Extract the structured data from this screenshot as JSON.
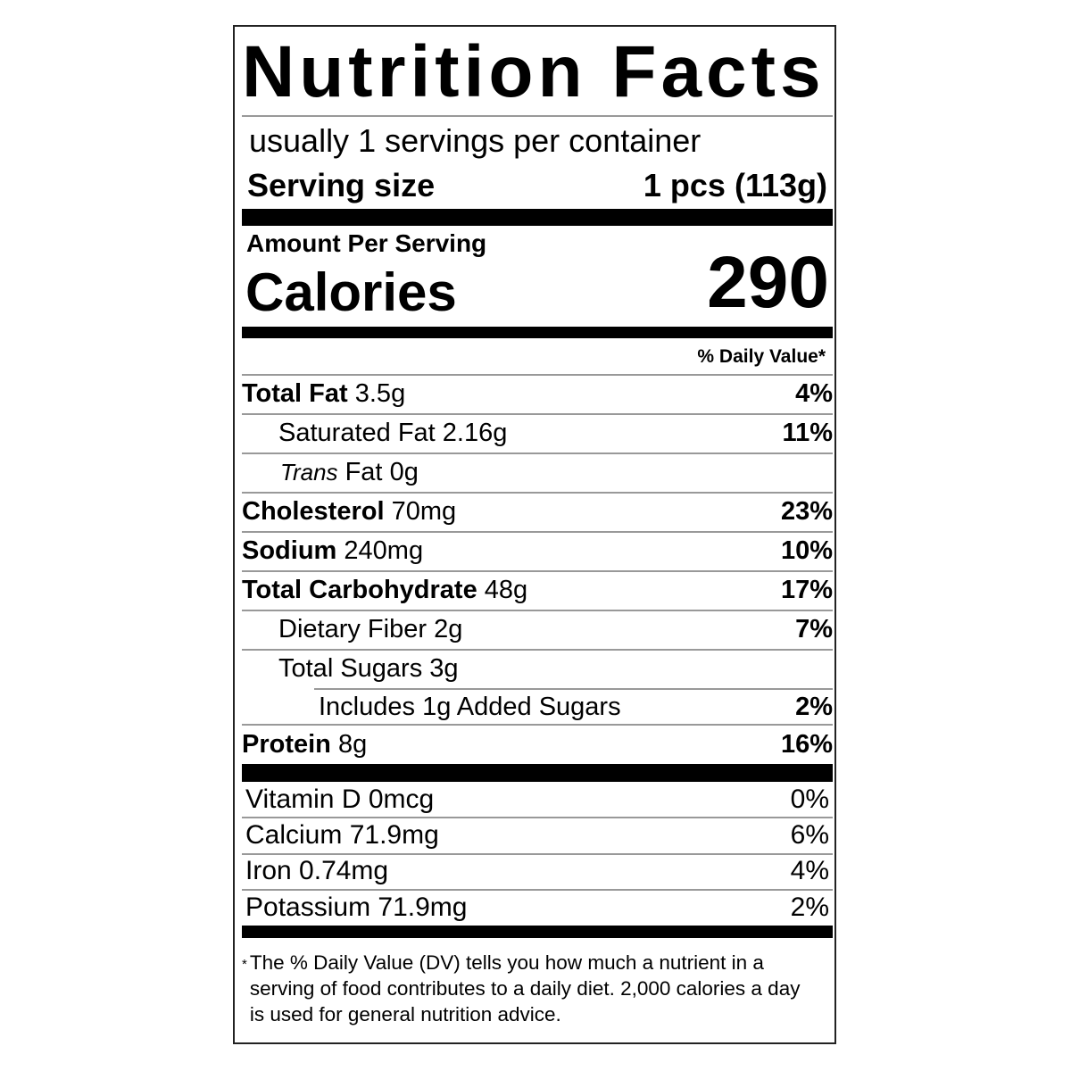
{
  "title": "Nutrition Facts",
  "servings_per_container": "usually 1 servings per container",
  "serving_size": {
    "label": "Serving size",
    "value": "1 pcs (113g)"
  },
  "amount_per_serving": "Amount Per Serving",
  "calories": {
    "label": "Calories",
    "value": "290"
  },
  "daily_value_header": "% Daily Value*",
  "nutrients": [
    {
      "name": "Total Fat",
      "amount": "3.5g",
      "dv": "4%"
    },
    {
      "name": "Saturated Fat",
      "amount": "2.16g",
      "dv": "11%"
    },
    {
      "name": "Trans",
      "name_suffix": "Fat",
      "amount": "0g",
      "dv": ""
    },
    {
      "name": "Cholesterol",
      "amount": "70mg",
      "dv": "23%"
    },
    {
      "name": "Sodium",
      "amount": "240mg",
      "dv": "10%"
    },
    {
      "name": "Total Carbohydrate",
      "amount": "48g",
      "dv": "17%"
    },
    {
      "name": "Dietary Fiber",
      "amount": "2g",
      "dv": "7%"
    },
    {
      "name": "Total Sugars",
      "amount": "3g",
      "dv": ""
    },
    {
      "name": "Includes 1g Added Sugars",
      "amount": "",
      "dv": "2%"
    },
    {
      "name": "Protein",
      "amount": "8g",
      "dv": "16%"
    }
  ],
  "vitamins": [
    {
      "name": "Vitamin D",
      "amount": "0mcg",
      "dv": "0%"
    },
    {
      "name": "Calcium",
      "amount": "71.9mg",
      "dv": "6%"
    },
    {
      "name": "Iron",
      "amount": "0.74mg",
      "dv": "4%"
    },
    {
      "name": "Potassium",
      "amount": "71.9mg",
      "dv": "2%"
    }
  ],
  "footnote": {
    "asterisk": "*",
    "text": "The % Daily Value (DV) tells you how much a nutrient in a serving of food contributes to a daily diet. 2,000 calories a day is used for general nutrition advice."
  }
}
